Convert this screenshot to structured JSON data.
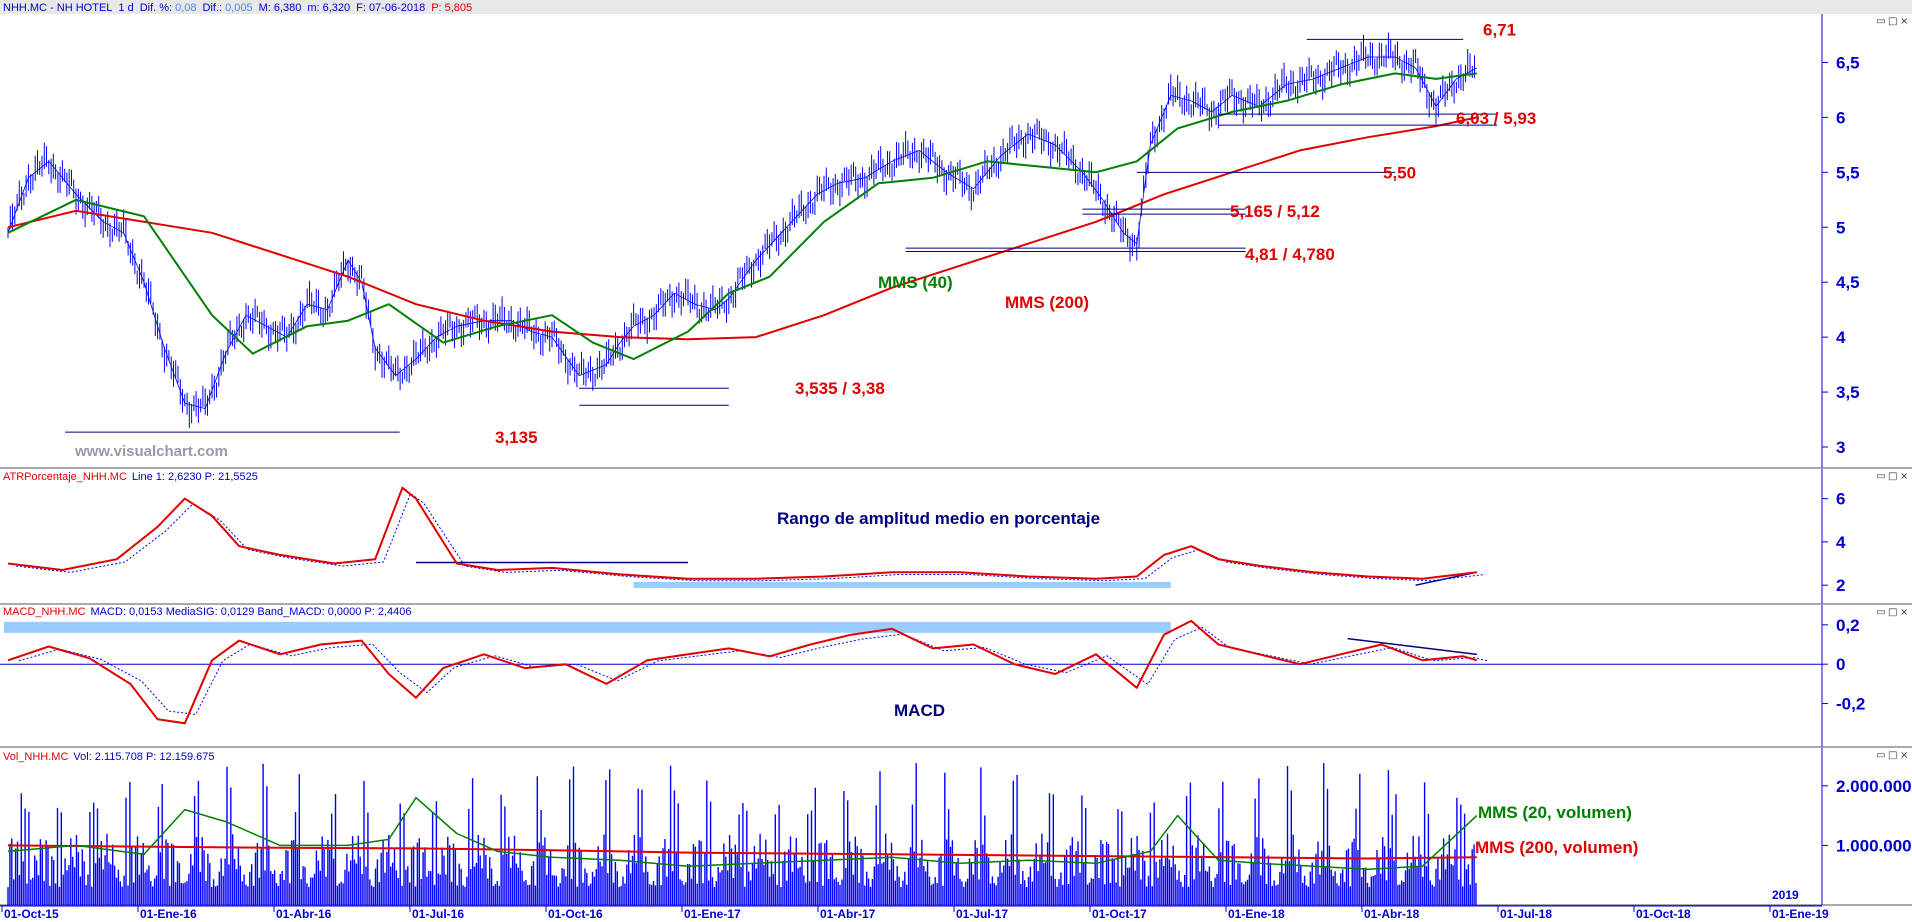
{
  "header": {
    "symbol": "NHH.MC",
    "name": "NH HOTEL",
    "period": "1 d",
    "dif_pct_label": "Dif. %:",
    "dif_pct": "0,08",
    "dif_label": "Dif.:",
    "dif": "0,005",
    "max_label": "M:",
    "max": "6,380",
    "min_label": "m:",
    "min": "6,320",
    "date_label": "F:",
    "date": "07-06-2018",
    "p_label": "P:",
    "p": "5,805"
  },
  "watermark": "www.visualchart.com",
  "panels": {
    "atr": {
      "title": "ATRPorcentaje_NHH.MC",
      "info": "Line 1: 2,6230  P: 21,5525",
      "note": "Rango de amplitud medio en porcentaje"
    },
    "macd": {
      "title": "MACD_NHH.MC",
      "info": "MACD: 0,0153  MediaSIG: 0,0129  Band_MACD: 0,0000  P: 2,4406",
      "note": "MACD"
    },
    "vol": {
      "title": "Vol_NHH.MC",
      "info": "Vol: 2.115.708  P: 12.159.675",
      "note20": "MMS (20, volumen)",
      "note200": "MMS (200, volumen)"
    }
  },
  "window_buttons": [
    "▭",
    "□",
    "×"
  ],
  "colors": {
    "price": "#0000ff",
    "ma40": "#008000",
    "ma200": "#e00000",
    "annotation_red": "#e00000",
    "annotation_navy": "#000080",
    "band": "#99ccff"
  },
  "chart_data": [
    {
      "type": "line",
      "title": "NHH.MC - NH HOTEL",
      "x_ticks": [
        "01-Oct-15",
        "01-Ene-16",
        "01-Abr-16",
        "01-Jul-16",
        "01-Oct-16",
        "01-Ene-17",
        "01-Abr-17",
        "01-Jul-17",
        "01-Oct-17",
        "01-Ene-18",
        "01-Abr-18",
        "01-Jul-18",
        "01-Oct-18",
        "01-Ene-19"
      ],
      "year_marker": "2019",
      "y_ticks": [
        "3",
        "3,5",
        "4",
        "4,5",
        "5",
        "5,5",
        "6",
        "6,5"
      ],
      "ylim": [
        2.9,
        6.85
      ],
      "series": [
        {
          "name": "NHH.MC",
          "x": [
            0,
            0.15,
            0.3,
            0.5,
            0.7,
            0.85,
            1.0,
            1.15,
            1.3,
            1.45,
            1.6,
            1.75,
            1.9,
            2.05,
            2.2,
            2.35,
            2.5,
            2.6,
            2.7,
            2.85,
            3.0,
            3.15,
            3.3,
            3.5,
            3.7,
            3.85,
            4.0,
            4.2,
            4.4,
            4.5,
            4.6,
            4.75,
            4.9,
            5.05,
            5.2,
            5.3,
            5.5,
            5.65,
            5.8,
            5.95,
            6.1,
            6.3,
            6.5,
            6.7,
            6.9,
            7.1,
            7.3,
            7.5,
            7.7,
            7.9,
            8.05,
            8.2,
            8.3,
            8.4,
            8.55,
            8.7,
            8.85,
            9.0,
            9.2,
            9.4,
            9.6,
            9.8,
            10.0,
            10.2,
            10.35,
            10.5,
            10.65,
            10.8
          ],
          "values": [
            4.95,
            5.45,
            5.6,
            5.3,
            5.05,
            4.95,
            4.5,
            3.9,
            3.4,
            3.35,
            3.85,
            4.2,
            4.1,
            4.0,
            4.3,
            4.25,
            4.7,
            4.5,
            3.9,
            3.65,
            3.8,
            4.0,
            4.1,
            4.15,
            4.15,
            4.05,
            4.0,
            3.65,
            3.75,
            3.95,
            4.1,
            4.2,
            4.4,
            4.3,
            4.25,
            4.35,
            4.7,
            4.9,
            5.1,
            5.3,
            5.4,
            5.45,
            5.6,
            5.7,
            5.5,
            5.35,
            5.65,
            5.85,
            5.75,
            5.5,
            5.25,
            4.95,
            4.85,
            5.75,
            6.2,
            6.15,
            6.05,
            6.2,
            6.1,
            6.3,
            6.35,
            6.45,
            6.55,
            6.55,
            6.45,
            6.1,
            6.35,
            6.45
          ]
        },
        {
          "name": "MMS (40)",
          "x": [
            0,
            0.5,
            1.0,
            1.5,
            1.8,
            2.2,
            2.5,
            2.8,
            3.2,
            3.6,
            4.0,
            4.3,
            4.6,
            5.0,
            5.3,
            5.6,
            6.0,
            6.4,
            6.8,
            7.2,
            7.6,
            8.0,
            8.3,
            8.6,
            9.0,
            9.4,
            9.8,
            10.2,
            10.5,
            10.8
          ],
          "values": [
            4.95,
            5.25,
            5.1,
            4.2,
            3.85,
            4.1,
            4.15,
            4.3,
            3.95,
            4.1,
            4.2,
            3.95,
            3.8,
            4.05,
            4.4,
            4.55,
            5.05,
            5.4,
            5.45,
            5.6,
            5.55,
            5.5,
            5.6,
            5.9,
            6.05,
            6.15,
            6.3,
            6.4,
            6.35,
            6.4
          ]
        },
        {
          "name": "MMS (200)",
          "x": [
            0,
            0.5,
            1.0,
            1.5,
            2.0,
            2.5,
            3.0,
            3.5,
            4.0,
            4.5,
            5.0,
            5.5,
            6.0,
            6.5,
            7.0,
            7.5,
            8.0,
            8.5,
            9.0,
            9.5,
            10.0,
            10.5,
            10.8
          ],
          "values": [
            5.0,
            5.15,
            5.05,
            4.95,
            4.75,
            4.55,
            4.3,
            4.15,
            4.05,
            4.0,
            3.98,
            4.0,
            4.2,
            4.45,
            4.65,
            4.85,
            5.05,
            5.3,
            5.5,
            5.7,
            5.82,
            5.92,
            6.0
          ]
        }
      ],
      "annotations": [
        {
          "label": "6,71",
          "levels": [
            6.71
          ]
        },
        {
          "label": "6,03 / 5,93",
          "levels": [
            6.03,
            5.93
          ]
        },
        {
          "label": "5,50",
          "levels": [
            5.5
          ]
        },
        {
          "label": "5,165 / 5,12",
          "levels": [
            5.165,
            5.12
          ]
        },
        {
          "label": "4,81 / 4,780",
          "levels": [
            4.81,
            4.78
          ]
        },
        {
          "label": "3,535 / 3,38",
          "levels": [
            3.535,
            3.38
          ]
        },
        {
          "label": "3,135",
          "levels": [
            3.135
          ]
        }
      ],
      "series_labels": [
        {
          "label": "MMS (40)",
          "series": "MMS (40)"
        },
        {
          "label": "MMS (200)",
          "series": "MMS (200)"
        }
      ]
    },
    {
      "type": "line",
      "title": "ATRPorcentaje_NHH.MC",
      "y_ticks": [
        "2",
        "4",
        "6"
      ],
      "ylim": [
        1.5,
        7.0
      ],
      "series": [
        {
          "name": "ATR %",
          "x": [
            0,
            0.4,
            0.8,
            1.1,
            1.3,
            1.5,
            1.7,
            2.0,
            2.4,
            2.7,
            2.9,
            3.0,
            3.1,
            3.3,
            3.6,
            4.0,
            4.5,
            5.0,
            5.5,
            6.0,
            6.5,
            7.0,
            7.5,
            8.0,
            8.3,
            8.5,
            8.7,
            8.9,
            9.2,
            9.6,
            10.0,
            10.4,
            10.8
          ],
          "values": [
            3.0,
            2.7,
            3.2,
            4.7,
            6.0,
            5.2,
            3.8,
            3.4,
            3.0,
            3.2,
            6.5,
            6.0,
            5.0,
            3.0,
            2.7,
            2.8,
            2.5,
            2.3,
            2.3,
            2.4,
            2.6,
            2.6,
            2.4,
            2.3,
            2.4,
            3.4,
            3.8,
            3.2,
            2.9,
            2.6,
            2.4,
            2.3,
            2.6
          ]
        }
      ],
      "notes": [
        "Rango de amplitud medio en porcentaje"
      ]
    },
    {
      "type": "line",
      "title": "MACD_NHH.MC",
      "y_ticks": [
        "0,2",
        "0",
        "-0,2"
      ],
      "ylim": [
        -0.38,
        0.26
      ],
      "series": [
        {
          "name": "MACD",
          "x": [
            0,
            0.3,
            0.6,
            0.9,
            1.1,
            1.3,
            1.5,
            1.7,
            2.0,
            2.3,
            2.6,
            2.8,
            3.0,
            3.2,
            3.5,
            3.8,
            4.1,
            4.4,
            4.7,
            5.0,
            5.3,
            5.6,
            5.9,
            6.2,
            6.5,
            6.8,
            7.1,
            7.4,
            7.7,
            8.0,
            8.3,
            8.5,
            8.7,
            8.9,
            9.2,
            9.5,
            9.8,
            10.1,
            10.4,
            10.7,
            10.8
          ],
          "values": [
            0.02,
            0.09,
            0.03,
            -0.1,
            -0.28,
            -0.3,
            0.02,
            0.12,
            0.05,
            0.1,
            0.12,
            -0.05,
            -0.17,
            -0.02,
            0.05,
            -0.02,
            0.0,
            -0.1,
            0.02,
            0.05,
            0.08,
            0.04,
            0.1,
            0.15,
            0.18,
            0.08,
            0.1,
            0.0,
            -0.05,
            0.05,
            -0.12,
            0.15,
            0.22,
            0.1,
            0.05,
            0.0,
            0.05,
            0.1,
            0.02,
            0.04,
            0.02
          ]
        }
      ],
      "notes": [
        "MACD"
      ]
    },
    {
      "type": "bar",
      "title": "Vol_NHH.MC",
      "y_ticks": [
        "1.000.000",
        "2.000.000"
      ],
      "ylim": [
        0,
        2500000
      ],
      "series": [
        {
          "name": "MMS (20, volumen)",
          "x": [
            0,
            0.5,
            1.0,
            1.3,
            1.6,
            2.0,
            2.5,
            2.8,
            3.0,
            3.3,
            3.6,
            4.0,
            4.5,
            5.0,
            5.5,
            6.0,
            6.5,
            7.0,
            7.5,
            8.0,
            8.4,
            8.6,
            8.9,
            9.2,
            9.6,
            10.0,
            10.4,
            10.8
          ],
          "values": [
            900000,
            1000000,
            850000,
            1600000,
            1400000,
            1000000,
            1000000,
            1100000,
            1800000,
            1200000,
            900000,
            800000,
            750000,
            650000,
            700000,
            750000,
            800000,
            700000,
            750000,
            700000,
            900000,
            1500000,
            750000,
            700000,
            650000,
            600000,
            650000,
            1500000
          ]
        },
        {
          "name": "MMS (200, volumen)",
          "x": [
            0,
            1.0,
            2.0,
            3.0,
            4.0,
            5.0,
            6.0,
            7.0,
            8.0,
            9.0,
            10.0,
            10.8
          ],
          "values": [
            1000000,
            980000,
            960000,
            950000,
            920000,
            880000,
            860000,
            840000,
            820000,
            800000,
            780000,
            800000
          ]
        }
      ],
      "notes": [
        "MMS (20, volumen)",
        "MMS (200, volumen)"
      ]
    }
  ]
}
